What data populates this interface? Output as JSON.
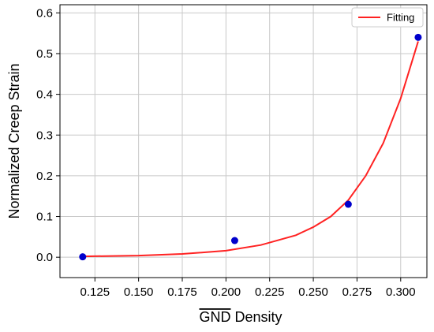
{
  "chart_data": {
    "type": "scatter",
    "title": "",
    "xlabel_overline": "GND",
    "xlabel_rest": " Density",
    "ylabel": "Normalized Creep Strain",
    "xlim": [
      0.105,
      0.315
    ],
    "ylim": [
      -0.05,
      0.62
    ],
    "x_ticks": [
      "0.125",
      "0.150",
      "0.175",
      "0.200",
      "0.225",
      "0.250",
      "0.275",
      "0.300"
    ],
    "y_ticks": [
      "0.0",
      "0.1",
      "0.2",
      "0.3",
      "0.4",
      "0.5",
      "0.6"
    ],
    "grid": true,
    "legend_position": "top-right",
    "series": [
      {
        "name": "",
        "kind": "scatter",
        "color": "#0000cc",
        "x": [
          0.118,
          0.205,
          0.27,
          0.31
        ],
        "y": [
          0.001,
          0.041,
          0.13,
          0.54
        ]
      },
      {
        "name": "Fitting",
        "kind": "line",
        "color": "#ff2222",
        "x": [
          0.118,
          0.15,
          0.175,
          0.2,
          0.22,
          0.24,
          0.25,
          0.26,
          0.27,
          0.28,
          0.29,
          0.3,
          0.31
        ],
        "y": [
          0.002,
          0.004,
          0.008,
          0.016,
          0.03,
          0.054,
          0.074,
          0.1,
          0.14,
          0.2,
          0.28,
          0.39,
          0.53
        ]
      }
    ]
  }
}
